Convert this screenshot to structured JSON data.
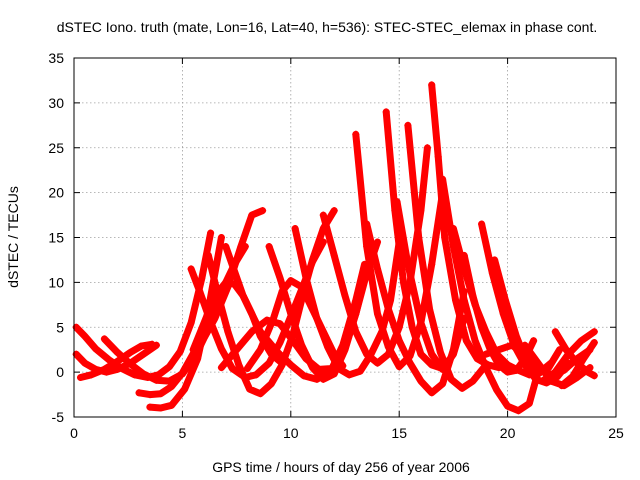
{
  "chart_data": {
    "type": "scatter",
    "title": "dSTEC Iono. truth (mate, Lon=16, Lat=40, h=536): STEC-STEC_elemax in phase cont.",
    "xlabel": "GPS time / hours of day 256 of year 2006",
    "ylabel": "dSTEC  / TECUs",
    "xlim": [
      0,
      25
    ],
    "ylim": [
      -5,
      35
    ],
    "xticks": [
      0,
      5,
      10,
      15,
      20,
      25
    ],
    "yticks": [
      -5,
      0,
      5,
      10,
      15,
      20,
      25,
      30,
      35
    ],
    "grid": true,
    "legend": "none",
    "marker": "+",
    "color": "#ff0000",
    "series": [
      {
        "x": [
          0.1,
          0.5,
          1.0,
          1.6,
          2.2,
          2.8,
          3.4,
          3.9,
          4.4,
          4.9,
          5.4,
          5.9,
          6.3
        ],
        "y": [
          5.0,
          4.0,
          2.6,
          1.4,
          0.4,
          -0.3,
          -0.6,
          -0.3,
          0.6,
          2.3,
          5.5,
          10.5,
          15.5
        ]
      },
      {
        "x": [
          0.1,
          0.5,
          1.0,
          1.5,
          2.0,
          2.6,
          3.2,
          3.8
        ],
        "y": [
          2.0,
          1.0,
          0.3,
          0.0,
          0.3,
          1.0,
          2.0,
          3.0
        ]
      },
      {
        "x": [
          0.3,
          0.8,
          1.4,
          2.0,
          2.6,
          3.1,
          3.6
        ],
        "y": [
          -0.6,
          -0.3,
          0.3,
          1.2,
          2.2,
          2.9,
          3.1
        ]
      },
      {
        "x": [
          1.4,
          2.0,
          2.6,
          3.2,
          3.8,
          4.4,
          5.0,
          5.6,
          6.0,
          6.5,
          7.1,
          7.7,
          8.2,
          8.7
        ],
        "y": [
          3.7,
          2.2,
          0.9,
          -0.2,
          -0.9,
          -1.0,
          -0.2,
          1.8,
          3.8,
          6.0,
          9.5,
          14.0,
          17.5,
          18.0
        ]
      },
      {
        "x": [
          3.0,
          3.5,
          4.0,
          4.5,
          5.0,
          5.6,
          6.3,
          6.9,
          7.4,
          7.9
        ],
        "y": [
          -2.3,
          -2.5,
          -2.4,
          -1.6,
          -0.1,
          2.5,
          6.0,
          9.5,
          12.0,
          14.0
        ]
      },
      {
        "x": [
          3.5,
          4.0,
          4.5,
          5.1,
          5.7,
          6.2,
          6.8
        ],
        "y": [
          -3.9,
          -4.0,
          -3.7,
          -1.9,
          1.5,
          7.0,
          15.0
        ]
      },
      {
        "x": [
          5.4,
          5.8,
          6.3,
          6.8,
          7.3,
          7.9,
          8.4,
          9.0,
          9.5,
          10.0,
          10.5,
          11.0,
          11.5
        ],
        "y": [
          11.5,
          9.0,
          5.6,
          2.6,
          0.4,
          -0.6,
          -0.3,
          1.0,
          3.3,
          6.2,
          9.2,
          12.3,
          14.5
        ]
      },
      {
        "x": [
          5.5,
          6.0,
          6.5,
          7.0,
          7.4,
          7.8,
          8.2,
          8.6,
          9.1,
          9.5
        ],
        "y": [
          2.5,
          5.5,
          8.5,
          10.0,
          9.8,
          8.5,
          6.5,
          4.0,
          2.0,
          1.2
        ]
      },
      {
        "x": [
          6.2,
          6.6,
          7.1,
          7.6,
          8.1,
          8.6,
          9.1,
          9.6,
          10.1,
          10.6,
          11.0,
          11.5,
          12.0
        ],
        "y": [
          13.0,
          9.0,
          4.5,
          0.8,
          -1.9,
          -2.4,
          -1.3,
          0.8,
          4.2,
          9.0,
          12.5,
          16.0,
          18.0
        ]
      },
      {
        "x": [
          6.8,
          7.5,
          8.2,
          8.9,
          9.5,
          10.1,
          10.7,
          11.3,
          11.9,
          12.4,
          13.0,
          13.4
        ],
        "y": [
          0.5,
          2.5,
          4.5,
          5.8,
          5.4,
          3.5,
          1.5,
          0.3,
          0.4,
          3.0,
          8.0,
          12.0
        ]
      },
      {
        "x": [
          7.0,
          7.8,
          8.6,
          9.4,
          10.0,
          10.6,
          11.2,
          11.8,
          12.4,
          13.0,
          13.5,
          14.0
        ],
        "y": [
          14.0,
          8.5,
          4.5,
          2.2,
          0.8,
          -0.4,
          -0.8,
          0.0,
          2.5,
          6.5,
          11.0,
          14.5
        ]
      },
      {
        "x": [
          8.0,
          8.6,
          9.2,
          9.6,
          10.0,
          10.5,
          11.0,
          11.5,
          12.0,
          12.4
        ],
        "y": [
          0.4,
          2.5,
          6.0,
          9.0,
          10.2,
          9.5,
          7.0,
          4.5,
          2.0,
          0.7
        ]
      },
      {
        "x": [
          9.0,
          9.5,
          10.0,
          10.5,
          11.0,
          11.5,
          12.0,
          12.5,
          13.0,
          13.5
        ],
        "y": [
          14.0,
          10.5,
          6.5,
          3.0,
          0.5,
          -0.8,
          -0.2,
          2.5,
          6.5,
          11.5
        ]
      },
      {
        "x": [
          10.2,
          10.7,
          11.2,
          11.7,
          12.2,
          12.7,
          13.2,
          13.7,
          14.2,
          14.6,
          15.0
        ],
        "y": [
          16.0,
          10.5,
          6.0,
          2.8,
          0.4,
          -0.3,
          0.1,
          2.0,
          4.5,
          8.0,
          14.5
        ]
      },
      {
        "x": [
          11.5,
          12.0,
          12.5,
          13.0,
          13.5,
          14.0,
          14.5,
          15.0,
          15.5,
          16.0,
          16.3
        ],
        "y": [
          17.5,
          13.0,
          8.5,
          4.5,
          2.0,
          1.0,
          2.0,
          5.0,
          10.0,
          18.0,
          25.0
        ]
      },
      {
        "x": [
          13.0,
          13.5,
          14.0,
          14.5,
          15.0,
          15.5,
          16.0,
          16.5,
          17.0
        ],
        "y": [
          26.5,
          14.0,
          6.5,
          2.8,
          0.6,
          1.8,
          5.5,
          12.0,
          20.0
        ]
      },
      {
        "x": [
          13.5,
          14.0,
          14.5,
          15.0,
          15.5,
          16.0,
          16.5,
          17.0,
          17.5,
          18.0
        ],
        "y": [
          16.5,
          11.5,
          7.0,
          3.5,
          1.0,
          -1.0,
          -2.3,
          -1.3,
          2.5,
          9.0
        ]
      },
      {
        "x": [
          14.4,
          14.8,
          15.2,
          15.6,
          16.0,
          16.5,
          17.0
        ],
        "y": [
          29.0,
          18.0,
          10.0,
          5.0,
          2.0,
          0.8,
          0.4
        ]
      },
      {
        "x": [
          14.9,
          15.4,
          16.0,
          16.5,
          17.0,
          17.5,
          18.0
        ],
        "y": [
          19.0,
          12.0,
          5.5,
          2.0,
          0.3,
          2.0,
          6.0
        ]
      },
      {
        "x": [
          15.4,
          15.9,
          16.4,
          16.9,
          17.4,
          17.9,
          18.4,
          18.9
        ],
        "y": [
          27.5,
          15.0,
          7.0,
          2.2,
          -0.8,
          -1.8,
          -1.0,
          0.5
        ]
      },
      {
        "x": [
          16.5,
          16.8,
          17.1,
          17.6,
          18.1,
          18.6,
          19.1,
          19.6
        ],
        "y": [
          32.0,
          24.0,
          15.0,
          8.0,
          3.5,
          1.5,
          0.8,
          0.5
        ]
      },
      {
        "x": [
          17.0,
          17.5,
          18.0,
          18.5,
          19.0,
          19.5,
          20.0,
          20.5,
          21.0,
          21.4
        ],
        "y": [
          21.5,
          14.0,
          8.0,
          3.5,
          0.5,
          -2.0,
          -3.8,
          -4.3,
          -3.5,
          0.0
        ]
      },
      {
        "x": [
          17.5,
          18.0,
          18.5,
          19.0,
          19.5,
          20.0,
          20.5,
          21.0,
          21.5,
          22.0
        ],
        "y": [
          16.0,
          11.5,
          7.5,
          4.5,
          2.0,
          0.8,
          0.2,
          -0.3,
          0.0,
          1.0
        ]
      },
      {
        "x": [
          18.0,
          18.4,
          18.8,
          19.2,
          19.6,
          20.0,
          20.4,
          20.8,
          21.2
        ],
        "y": [
          13.0,
          8.5,
          5.0,
          2.5,
          0.8,
          0.0,
          0.2,
          1.5,
          3.5
        ]
      },
      {
        "x": [
          18.8,
          19.3,
          19.8,
          20.3,
          20.8,
          21.3,
          21.8,
          22.3,
          22.8
        ],
        "y": [
          16.5,
          11.0,
          6.5,
          3.0,
          0.8,
          -0.8,
          -1.2,
          -0.5,
          1.0
        ]
      },
      {
        "x": [
          19.4,
          19.9,
          20.4,
          20.9,
          21.4,
          21.9,
          22.4
        ],
        "y": [
          12.5,
          8.0,
          4.0,
          1.0,
          -0.2,
          0.5,
          2.5
        ]
      },
      {
        "x": [
          19.0,
          19.6,
          20.2,
          20.8,
          21.4,
          22.0,
          22.6,
          23.2,
          23.8
        ],
        "y": [
          2.0,
          2.5,
          3.0,
          2.0,
          0.5,
          -0.3,
          0.2,
          1.5,
          2.5
        ]
      },
      {
        "x": [
          20.8,
          21.4,
          22.0,
          22.6,
          23.2,
          23.8
        ],
        "y": [
          3.0,
          1.0,
          -1.0,
          -1.5,
          -0.6,
          0.5
        ]
      },
      {
        "x": [
          21.6,
          22.2,
          22.8,
          23.4,
          24.0
        ],
        "y": [
          -1.0,
          0.0,
          2.0,
          3.5,
          4.5
        ]
      },
      {
        "x": [
          22.2,
          22.7,
          23.2,
          23.7,
          24.0
        ],
        "y": [
          4.5,
          2.5,
          1.0,
          0.0,
          -0.4
        ]
      },
      {
        "x": [
          22.5,
          23.0,
          23.5,
          24.0
        ],
        "y": [
          -1.5,
          -0.5,
          1.5,
          3.3
        ]
      }
    ]
  }
}
